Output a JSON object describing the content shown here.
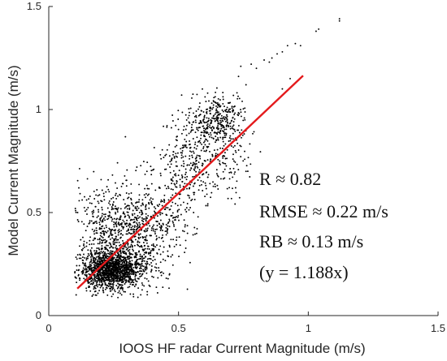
{
  "chart_data": {
    "type": "scatter",
    "title": "",
    "xlabel": "IOOS HF radar Current Magnitude (m/s)",
    "ylabel": "Model Current Magnitude (m/s)",
    "xlim": [
      0,
      1.5
    ],
    "ylim": [
      0,
      1.5
    ],
    "xticks": [
      "0",
      "0.5",
      "1",
      "1.5"
    ],
    "yticks": [
      "0",
      "0.5",
      "1",
      "1.5"
    ],
    "grid": false,
    "marker_color": "#000000",
    "fit_line": {
      "color": "#e41a1c",
      "slope": 1.188,
      "x_range": [
        0.11,
        0.98
      ]
    },
    "annotations": [
      {
        "text": "R ≈ 0.82",
        "color": "#111111"
      },
      {
        "text": "RMSE ≈ 0.22 m/s",
        "color": "#111111"
      },
      {
        "text": "RB ≈ 0.13 m/s",
        "color": "#111111"
      },
      {
        "text": "(y = 1.188x)",
        "color": "#e41a1c"
      }
    ],
    "clusters": [
      {
        "cx": 0.24,
        "cy": 0.22,
        "sx": 0.06,
        "sy": 0.045,
        "n": 1300
      },
      {
        "cx": 0.3,
        "cy": 0.35,
        "sx": 0.08,
        "sy": 0.12,
        "n": 700
      },
      {
        "cx": 0.2,
        "cy": 0.45,
        "sx": 0.05,
        "sy": 0.1,
        "n": 150
      },
      {
        "cx": 0.42,
        "cy": 0.5,
        "sx": 0.07,
        "sy": 0.12,
        "n": 250
      },
      {
        "cx": 0.55,
        "cy": 0.75,
        "sx": 0.06,
        "sy": 0.12,
        "n": 300
      },
      {
        "cx": 0.65,
        "cy": 0.95,
        "sx": 0.05,
        "sy": 0.06,
        "n": 300
      },
      {
        "cx": 0.7,
        "cy": 0.8,
        "sx": 0.04,
        "sy": 0.12,
        "n": 120
      }
    ],
    "extra_points": [
      [
        0.83,
        1.24
      ],
      [
        0.85,
        1.23
      ],
      [
        0.88,
        1.27
      ],
      [
        0.86,
        1.25
      ],
      [
        0.9,
        1.28
      ],
      [
        0.92,
        1.31
      ],
      [
        0.95,
        1.32
      ],
      [
        0.97,
        1.31
      ],
      [
        1.03,
        1.38
      ],
      [
        1.04,
        1.39
      ],
      [
        1.12,
        1.43
      ],
      [
        1.12,
        1.44
      ],
      [
        0.76,
        1.12
      ],
      [
        0.74,
        1.21
      ],
      [
        0.78,
        1.22
      ],
      [
        0.8,
        1.2
      ],
      [
        0.93,
        1.15
      ],
      [
        0.9,
        1.1
      ],
      [
        0.73,
        0.9
      ],
      [
        0.76,
        0.7
      ],
      [
        0.72,
        0.62
      ]
    ]
  }
}
